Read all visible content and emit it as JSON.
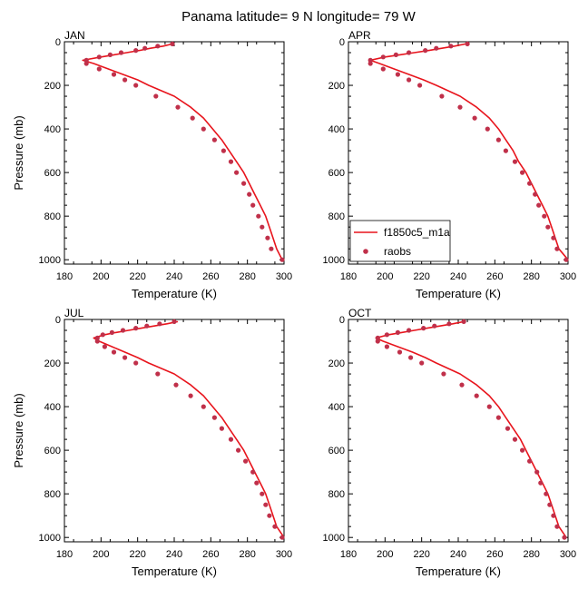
{
  "figure": {
    "title": "Panama  latitude= 9 N longitude= 79 W"
  },
  "colors": {
    "model_line": "#e8141c",
    "obs_marker": "#c0304a",
    "axis": "#000000",
    "background": "#ffffff"
  },
  "legend": {
    "panel": "APR",
    "placement": "bottom-left",
    "entries": [
      {
        "label": "f1850c5_m1a",
        "style": "line"
      },
      {
        "label": "raobs",
        "style": "marker"
      }
    ]
  },
  "chart_data": [
    {
      "type": "line",
      "panel": "JAN",
      "title": "JAN",
      "xlabel": "Temperature (K)",
      "ylabel": "Pressure (mb)",
      "xlim": [
        180,
        300
      ],
      "ylim": [
        1020,
        0
      ],
      "xticks": [
        180,
        200,
        220,
        240,
        260,
        280,
        300
      ],
      "yticks": [
        0,
        200,
        400,
        600,
        800,
        1000
      ],
      "series": [
        {
          "name": "f1850c5_m1a",
          "style": "line",
          "points": [
            [
              239,
              10
            ],
            [
              234,
              20
            ],
            [
              227,
              30
            ],
            [
              221,
              40
            ],
            [
              214,
              50
            ],
            [
              207,
              60
            ],
            [
              200,
              70
            ],
            [
              190,
              85
            ],
            [
              196,
              100
            ],
            [
              204,
              125
            ],
            [
              212,
              150
            ],
            [
              220,
              175
            ],
            [
              226,
              200
            ],
            [
              240,
              250
            ],
            [
              249,
              300
            ],
            [
              256,
              350
            ],
            [
              261,
              400
            ],
            [
              266,
              450
            ],
            [
              270,
              500
            ],
            [
              274,
              550
            ],
            [
              278,
              600
            ],
            [
              281,
              650
            ],
            [
              284,
              700
            ],
            [
              287,
              750
            ],
            [
              290,
              800
            ],
            [
              292,
              850
            ],
            [
              294,
              900
            ],
            [
              296,
              950
            ],
            [
              299,
              1000
            ]
          ]
        },
        {
          "name": "raobs",
          "style": "marker",
          "points": [
            [
              239,
              10
            ],
            [
              231,
              20
            ],
            [
              224,
              30
            ],
            [
              219,
              40
            ],
            [
              211,
              50
            ],
            [
              205,
              60
            ],
            [
              199,
              70
            ],
            [
              192,
              85
            ],
            [
              192,
              100
            ],
            [
              199,
              125
            ],
            [
              207,
              150
            ],
            [
              213,
              175
            ],
            [
              219,
              200
            ],
            [
              230,
              250
            ],
            [
              242,
              300
            ],
            [
              250,
              350
            ],
            [
              256,
              400
            ],
            [
              262,
              450
            ],
            [
              267,
              500
            ],
            [
              271,
              550
            ],
            [
              274,
              600
            ],
            [
              278,
              650
            ],
            [
              281,
              700
            ],
            [
              283,
              750
            ],
            [
              286,
              800
            ],
            [
              288,
              850
            ],
            [
              291,
              900
            ],
            [
              293,
              950
            ],
            [
              299,
              1000
            ]
          ]
        }
      ]
    },
    {
      "type": "line",
      "panel": "APR",
      "title": "APR",
      "xlabel": "Temperature (K)",
      "ylabel": "",
      "xlim": [
        180,
        300
      ],
      "ylim": [
        1020,
        0
      ],
      "xticks": [
        180,
        200,
        220,
        240,
        260,
        280,
        300
      ],
      "yticks": [
        0,
        200,
        400,
        600,
        800,
        1000
      ],
      "series": [
        {
          "name": "f1850c5_m1a",
          "style": "line",
          "points": [
            [
              244,
              10
            ],
            [
              238,
              20
            ],
            [
              231,
              30
            ],
            [
              224,
              40
            ],
            [
              216,
              50
            ],
            [
              208,
              60
            ],
            [
              200,
              70
            ],
            [
              192,
              85
            ],
            [
              197,
              100
            ],
            [
              205,
              125
            ],
            [
              213,
              150
            ],
            [
              221,
              175
            ],
            [
              228,
              200
            ],
            [
              241,
              250
            ],
            [
              250,
              300
            ],
            [
              257,
              350
            ],
            [
              262,
              400
            ],
            [
              266,
              450
            ],
            [
              270,
              500
            ],
            [
              273,
              550
            ],
            [
              277,
              600
            ],
            [
              280,
              650
            ],
            [
              283,
              700
            ],
            [
              286,
              750
            ],
            [
              289,
              800
            ],
            [
              291,
              850
            ],
            [
              293,
              900
            ],
            [
              295,
              950
            ],
            [
              300,
              1000
            ]
          ]
        },
        {
          "name": "raobs",
          "style": "marker",
          "points": [
            [
              245,
              10
            ],
            [
              236,
              20
            ],
            [
              228,
              30
            ],
            [
              222,
              40
            ],
            [
              213,
              50
            ],
            [
              206,
              60
            ],
            [
              199,
              70
            ],
            [
              192,
              85
            ],
            [
              192,
              100
            ],
            [
              199,
              125
            ],
            [
              207,
              150
            ],
            [
              213,
              175
            ],
            [
              219,
              200
            ],
            [
              231,
              250
            ],
            [
              241,
              300
            ],
            [
              249,
              350
            ],
            [
              256,
              400
            ],
            [
              262,
              450
            ],
            [
              266,
              500
            ],
            [
              271,
              550
            ],
            [
              275,
              600
            ],
            [
              279,
              650
            ],
            [
              282,
              700
            ],
            [
              284,
              750
            ],
            [
              287,
              800
            ],
            [
              289,
              850
            ],
            [
              292,
              900
            ],
            [
              294,
              950
            ],
            [
              299,
              1000
            ]
          ]
        }
      ]
    },
    {
      "type": "line",
      "panel": "JUL",
      "title": "JUL",
      "xlabel": "Temperature (K)",
      "ylabel": "Pressure (mb)",
      "xlim": [
        180,
        300
      ],
      "ylim": [
        1020,
        0
      ],
      "xticks": [
        180,
        200,
        220,
        240,
        260,
        280,
        300
      ],
      "yticks": [
        0,
        200,
        400,
        600,
        800,
        1000
      ],
      "series": [
        {
          "name": "f1850c5_m1a",
          "style": "line",
          "points": [
            [
              242,
              10
            ],
            [
              236,
              20
            ],
            [
              229,
              30
            ],
            [
              222,
              40
            ],
            [
              215,
              50
            ],
            [
              208,
              60
            ],
            [
              202,
              70
            ],
            [
              196,
              85
            ],
            [
              199,
              100
            ],
            [
              206,
              125
            ],
            [
              213,
              150
            ],
            [
              220,
              175
            ],
            [
              226,
              200
            ],
            [
              240,
              250
            ],
            [
              249,
              300
            ],
            [
              256,
              350
            ],
            [
              261,
              400
            ],
            [
              266,
              450
            ],
            [
              270,
              500
            ],
            [
              274,
              550
            ],
            [
              278,
              600
            ],
            [
              281,
              650
            ],
            [
              284,
              700
            ],
            [
              287,
              750
            ],
            [
              290,
              800
            ],
            [
              292,
              850
            ],
            [
              294,
              900
            ],
            [
              296,
              950
            ],
            [
              300,
              1000
            ]
          ]
        },
        {
          "name": "raobs",
          "style": "marker",
          "points": [
            [
              240,
              10
            ],
            [
              232,
              20
            ],
            [
              225,
              30
            ],
            [
              219,
              40
            ],
            [
              212,
              50
            ],
            [
              206,
              60
            ],
            [
              201,
              70
            ],
            [
              198,
              85
            ],
            [
              198,
              100
            ],
            [
              202,
              125
            ],
            [
              207,
              150
            ],
            [
              213,
              175
            ],
            [
              219,
              200
            ],
            [
              231,
              250
            ],
            [
              241,
              300
            ],
            [
              249,
              350
            ],
            [
              256,
              400
            ],
            [
              262,
              450
            ],
            [
              266,
              500
            ],
            [
              271,
              550
            ],
            [
              275,
              600
            ],
            [
              279,
              650
            ],
            [
              283,
              700
            ],
            [
              285,
              750
            ],
            [
              288,
              800
            ],
            [
              290,
              850
            ],
            [
              292,
              900
            ],
            [
              295,
              950
            ],
            [
              299,
              1000
            ]
          ]
        }
      ]
    },
    {
      "type": "line",
      "panel": "OCT",
      "title": "OCT",
      "xlabel": "Temperature (K)",
      "ylabel": "",
      "xlim": [
        180,
        300
      ],
      "ylim": [
        1020,
        0
      ],
      "xticks": [
        180,
        200,
        220,
        240,
        260,
        280,
        300
      ],
      "yticks": [
        0,
        200,
        400,
        600,
        800,
        1000
      ],
      "series": [
        {
          "name": "f1850c5_m1a",
          "style": "line",
          "points": [
            [
              243,
              10
            ],
            [
              237,
              20
            ],
            [
              230,
              30
            ],
            [
              223,
              40
            ],
            [
              216,
              50
            ],
            [
              209,
              60
            ],
            [
              202,
              70
            ],
            [
              195,
              85
            ],
            [
              199,
              100
            ],
            [
              207,
              125
            ],
            [
              215,
              150
            ],
            [
              222,
              175
            ],
            [
              228,
              200
            ],
            [
              241,
              250
            ],
            [
              250,
              300
            ],
            [
              257,
              350
            ],
            [
              262,
              400
            ],
            [
              266,
              450
            ],
            [
              270,
              500
            ],
            [
              274,
              550
            ],
            [
              277,
              600
            ],
            [
              280,
              650
            ],
            [
              283,
              700
            ],
            [
              286,
              750
            ],
            [
              289,
              800
            ],
            [
              291,
              850
            ],
            [
              293,
              900
            ],
            [
              295,
              950
            ],
            [
              299,
              1000
            ]
          ]
        },
        {
          "name": "raobs",
          "style": "marker",
          "points": [
            [
              243,
              10
            ],
            [
              235,
              20
            ],
            [
              227,
              30
            ],
            [
              221,
              40
            ],
            [
              213,
              50
            ],
            [
              207,
              60
            ],
            [
              201,
              70
            ],
            [
              196,
              85
            ],
            [
              196,
              100
            ],
            [
              201,
              125
            ],
            [
              208,
              150
            ],
            [
              214,
              175
            ],
            [
              220,
              200
            ],
            [
              232,
              250
            ],
            [
              242,
              300
            ],
            [
              250,
              350
            ],
            [
              257,
              400
            ],
            [
              262,
              450
            ],
            [
              267,
              500
            ],
            [
              271,
              550
            ],
            [
              275,
              600
            ],
            [
              279,
              650
            ],
            [
              283,
              700
            ],
            [
              285,
              750
            ],
            [
              288,
              800
            ],
            [
              290,
              850
            ],
            [
              292,
              900
            ],
            [
              294,
              950
            ],
            [
              298,
              1000
            ]
          ]
        }
      ]
    }
  ]
}
